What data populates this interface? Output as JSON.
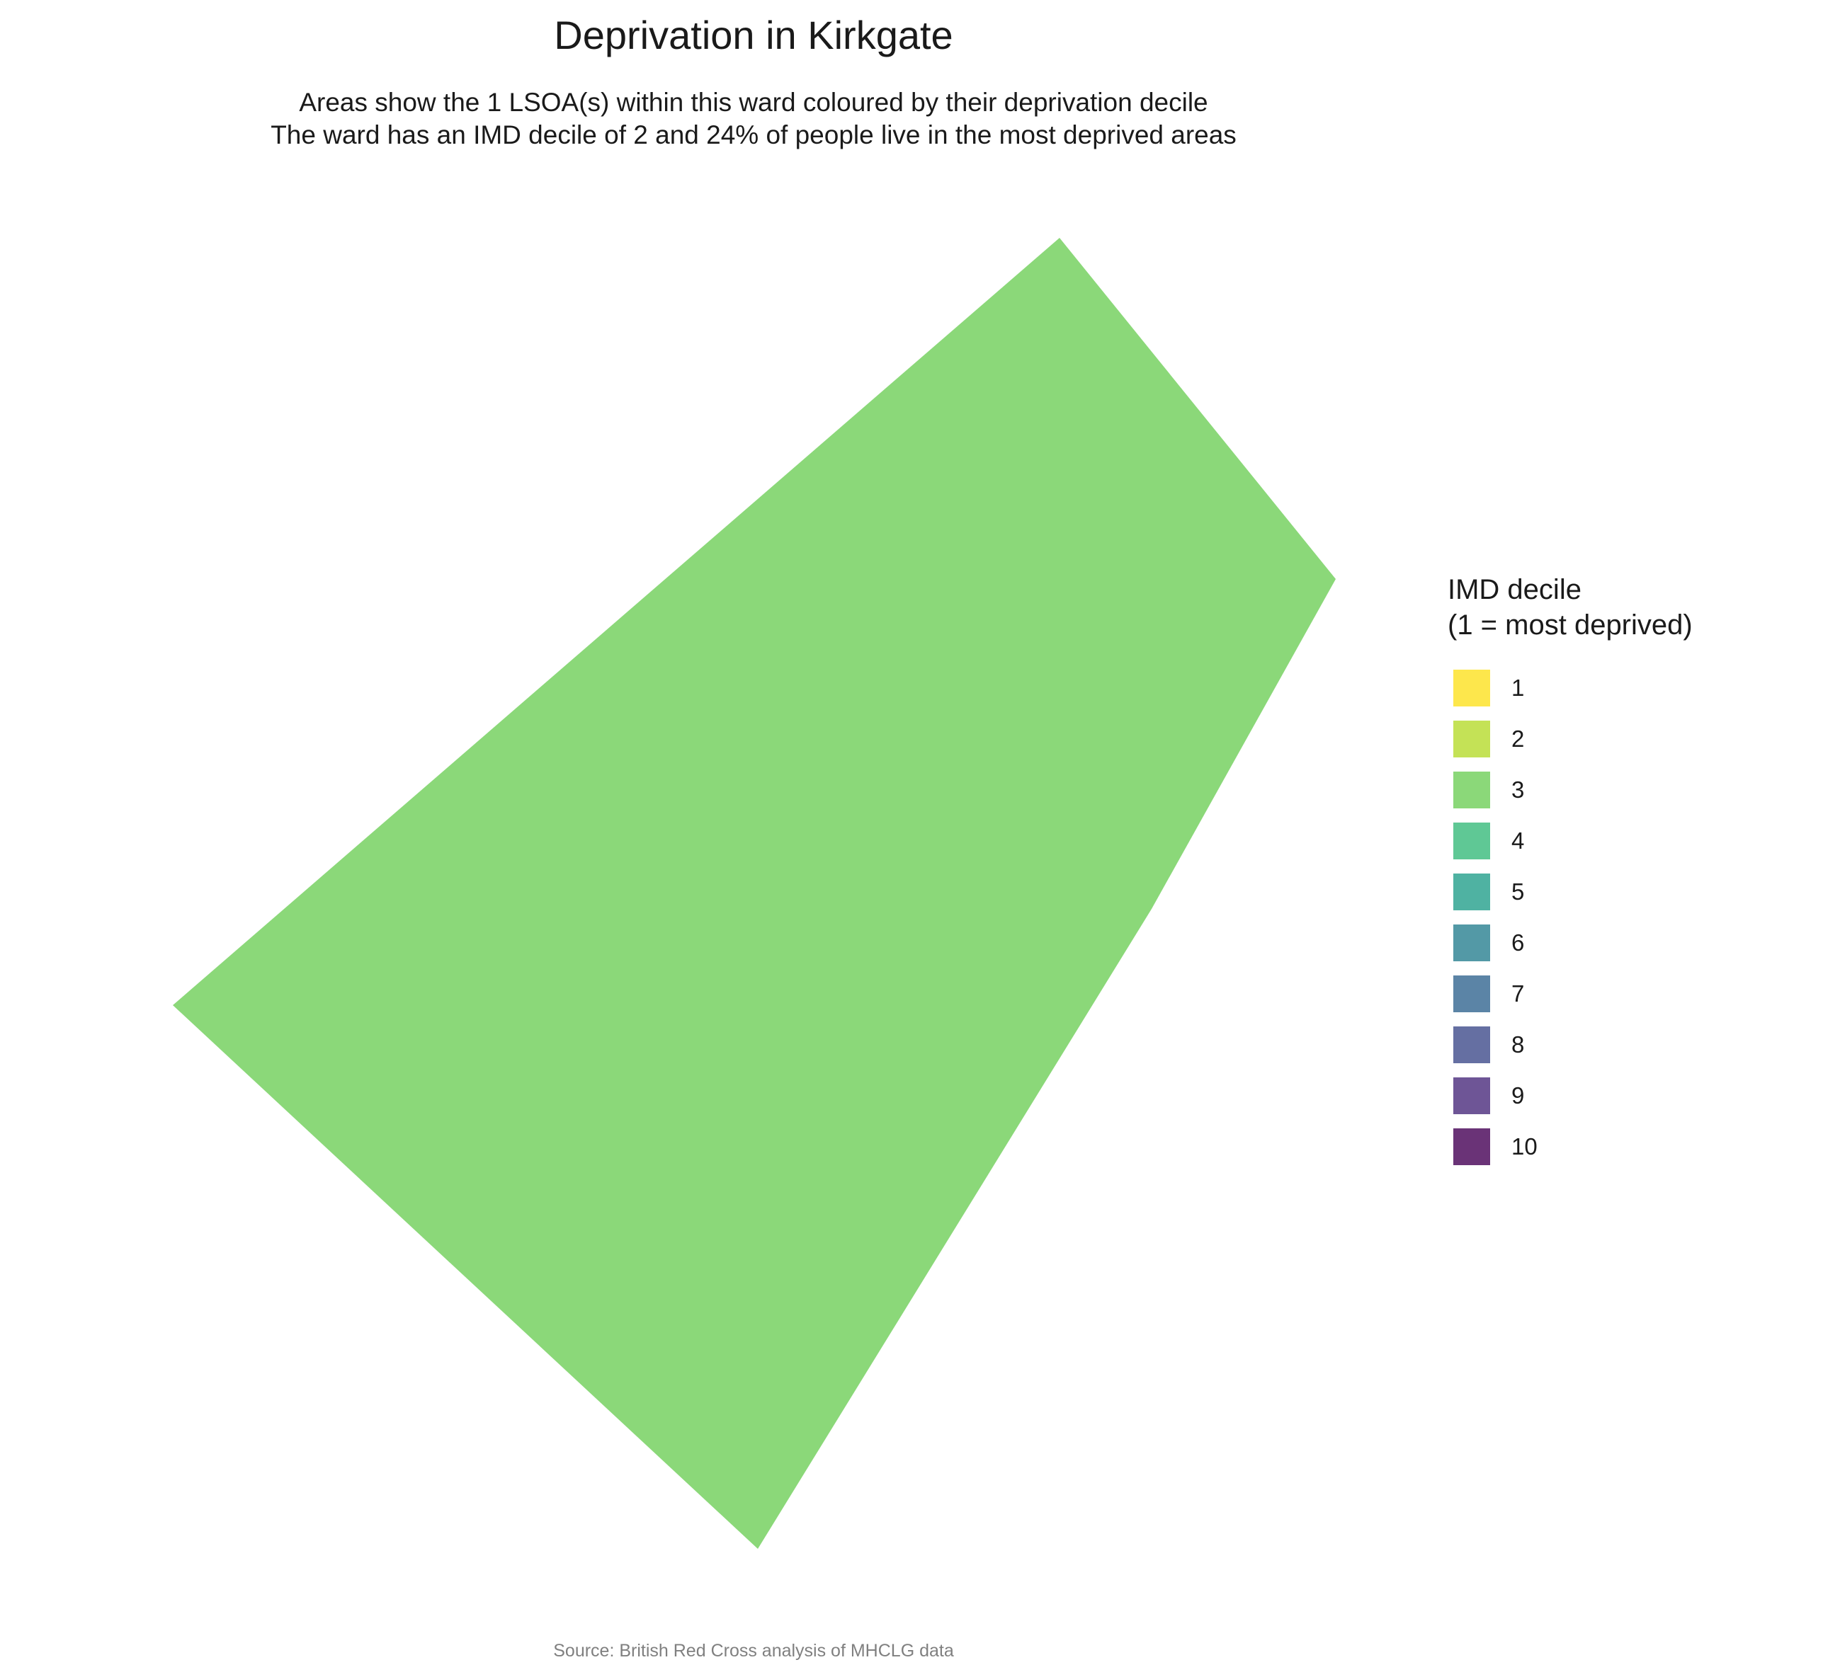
{
  "title": "Deprivation in Kirkgate",
  "subtitle": {
    "line1": "Areas show the 1 LSOA(s) within this ward coloured by their deprivation decile",
    "line2": "The ward has an IMD decile of 2 and 24% of people live in the most deprived areas"
  },
  "map": {
    "areas": [
      {
        "decile": 3,
        "color": "#8bd879"
      }
    ]
  },
  "legend": {
    "title_line1": "IMD decile",
    "title_line2": "(1 = most deprived)",
    "items": [
      {
        "label": "1",
        "color": "#fde74c"
      },
      {
        "label": "2",
        "color": "#c4e256"
      },
      {
        "label": "3",
        "color": "#8bd879"
      },
      {
        "label": "4",
        "color": "#5fc895"
      },
      {
        "label": "5",
        "color": "#4fb2a2"
      },
      {
        "label": "6",
        "color": "#5399a6"
      },
      {
        "label": "7",
        "color": "#5b84a6"
      },
      {
        "label": "8",
        "color": "#656fa2"
      },
      {
        "label": "9",
        "color": "#6e5596"
      },
      {
        "label": "10",
        "color": "#6a3377"
      }
    ]
  },
  "caption": "Source: British Red Cross analysis of MHCLG data"
}
